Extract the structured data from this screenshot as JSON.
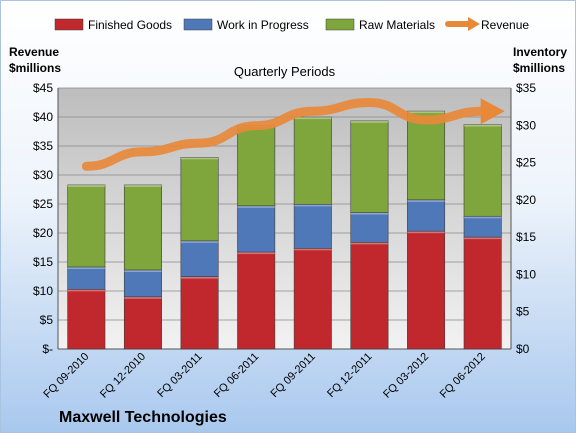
{
  "company": "Maxwell Technologies",
  "chart_data": {
    "type": "bar",
    "stacked": true,
    "title": "Quarterly Periods",
    "categories": [
      "FQ 09-2010",
      "FQ 12-2010",
      "FQ 03-2011",
      "FQ 06-2011",
      "FQ 09-2011",
      "FQ 12-2011",
      "FQ 03-2012",
      "FQ 06-2012"
    ],
    "series": [
      {
        "name": "Finished Goods",
        "axis": "right",
        "color": "#c0282d",
        "values": [
          8.0,
          7.0,
          9.7,
          13.0,
          13.5,
          14.3,
          15.8,
          15.0
        ]
      },
      {
        "name": "Work in Progress",
        "axis": "right",
        "color": "#4f78b8",
        "values": [
          3.0,
          3.6,
          4.8,
          6.2,
          5.9,
          4.0,
          4.2,
          2.8
        ]
      },
      {
        "name": "Raw Materials",
        "axis": "right",
        "color": "#7fa63c",
        "values": [
          11.0,
          11.4,
          11.2,
          10.8,
          11.7,
          12.3,
          11.9,
          12.3
        ]
      },
      {
        "name": "Revenue",
        "type": "line",
        "axis": "left",
        "color": "#e8893a",
        "values": [
          31.5,
          34,
          35.5,
          38.5,
          41,
          42.5,
          39.5,
          41
        ]
      }
    ],
    "y_left": {
      "label_line1": "Revenue",
      "label_line2": "$millions",
      "min": 0,
      "max": 45,
      "step": 5,
      "ticks": [
        "$-",
        "$5",
        "$10",
        "$15",
        "$20",
        "$25",
        "$30",
        "$35",
        "$40",
        "$45"
      ]
    },
    "y_right": {
      "label_line1": "Inventory",
      "label_line2": "$millions",
      "min": 0,
      "max": 35,
      "step": 5,
      "ticks": [
        "$0",
        "$5",
        "$10",
        "$15",
        "$20",
        "$25",
        "$30",
        "$35"
      ]
    },
    "grid": true,
    "legend": "top"
  }
}
